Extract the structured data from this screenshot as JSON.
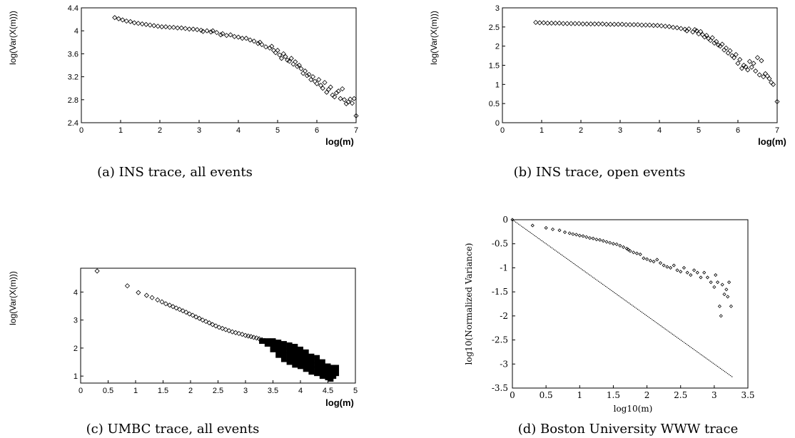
{
  "chart_data": [
    {
      "type": "scatter",
      "caption": "(a) INS trace, all events",
      "xlabel": "log(m)",
      "ylabel": "log(Var(X(m)))",
      "xlim": [
        0,
        7
      ],
      "ylim": [
        2.4,
        4.4
      ],
      "xticks": [
        "0",
        "1",
        "2",
        "3",
        "4",
        "5",
        "6",
        "7"
      ],
      "yticks": [
        "2.4",
        "2.8",
        "3.2",
        "3.6",
        "4",
        "4.4"
      ],
      "marker": "diamond",
      "points": [
        [
          0.85,
          4.23
        ],
        [
          0.95,
          4.21
        ],
        [
          1.05,
          4.19
        ],
        [
          1.15,
          4.17
        ],
        [
          1.25,
          4.16
        ],
        [
          1.35,
          4.14
        ],
        [
          1.45,
          4.13
        ],
        [
          1.55,
          4.12
        ],
        [
          1.65,
          4.11
        ],
        [
          1.75,
          4.1
        ],
        [
          1.85,
          4.09
        ],
        [
          1.95,
          4.08
        ],
        [
          2.05,
          4.07
        ],
        [
          2.15,
          4.07
        ],
        [
          2.25,
          4.06
        ],
        [
          2.35,
          4.06
        ],
        [
          2.45,
          4.05
        ],
        [
          2.55,
          4.05
        ],
        [
          2.65,
          4.04
        ],
        [
          2.75,
          4.03
        ],
        [
          2.85,
          4.03
        ],
        [
          2.95,
          4.02
        ],
        [
          3.05,
          4.01
        ],
        [
          3.1,
          3.99
        ],
        [
          3.2,
          4.0
        ],
        [
          3.3,
          3.98
        ],
        [
          3.35,
          4.0
        ],
        [
          3.45,
          3.97
        ],
        [
          3.55,
          3.93
        ],
        [
          3.6,
          3.95
        ],
        [
          3.7,
          3.92
        ],
        [
          3.8,
          3.93
        ],
        [
          3.9,
          3.9
        ],
        [
          4.0,
          3.89
        ],
        [
          4.1,
          3.87
        ],
        [
          4.2,
          3.87
        ],
        [
          4.3,
          3.84
        ],
        [
          4.4,
          3.82
        ],
        [
          4.5,
          3.78
        ],
        [
          4.55,
          3.8
        ],
        [
          4.6,
          3.76
        ],
        [
          4.7,
          3.72
        ],
        [
          4.8,
          3.7
        ],
        [
          4.85,
          3.73
        ],
        [
          4.9,
          3.66
        ],
        [
          4.95,
          3.62
        ],
        [
          5.0,
          3.66
        ],
        [
          5.05,
          3.58
        ],
        [
          5.1,
          3.52
        ],
        [
          5.15,
          3.6
        ],
        [
          5.2,
          3.55
        ],
        [
          5.25,
          3.49
        ],
        [
          5.3,
          3.47
        ],
        [
          5.35,
          3.52
        ],
        [
          5.4,
          3.42
        ],
        [
          5.45,
          3.46
        ],
        [
          5.5,
          3.38
        ],
        [
          5.55,
          3.4
        ],
        [
          5.6,
          3.34
        ],
        [
          5.65,
          3.26
        ],
        [
          5.7,
          3.3
        ],
        [
          5.75,
          3.22
        ],
        [
          5.8,
          3.24
        ],
        [
          5.85,
          3.15
        ],
        [
          5.9,
          3.2
        ],
        [
          5.95,
          3.12
        ],
        [
          6.0,
          3.08
        ],
        [
          6.05,
          3.15
        ],
        [
          6.1,
          3.05
        ],
        [
          6.15,
          3.0
        ],
        [
          6.2,
          3.1
        ],
        [
          6.25,
          2.93
        ],
        [
          6.3,
          2.98
        ],
        [
          6.35,
          3.02
        ],
        [
          6.4,
          2.88
        ],
        [
          6.45,
          2.85
        ],
        [
          6.5,
          2.92
        ],
        [
          6.55,
          2.95
        ],
        [
          6.6,
          2.82
        ],
        [
          6.65,
          2.99
        ],
        [
          6.7,
          2.8
        ],
        [
          6.75,
          2.73
        ],
        [
          6.8,
          2.76
        ],
        [
          6.85,
          2.81
        ],
        [
          6.9,
          2.74
        ],
        [
          6.95,
          2.82
        ],
        [
          7.0,
          2.52
        ]
      ]
    },
    {
      "type": "scatter",
      "caption": "(b) INS trace, open events",
      "xlabel": "log(m)",
      "ylabel": "log(Var(X(m)))",
      "xlim": [
        0,
        7
      ],
      "ylim": [
        0,
        3
      ],
      "xticks": [
        "0",
        "1",
        "2",
        "3",
        "4",
        "5",
        "6",
        "7"
      ],
      "yticks": [
        "0",
        "0.5",
        "1",
        "1.5",
        "2",
        "2.5",
        "3"
      ],
      "marker": "diamond",
      "points": [
        [
          0.85,
          2.62
        ],
        [
          0.95,
          2.61
        ],
        [
          1.05,
          2.61
        ],
        [
          1.15,
          2.6
        ],
        [
          1.25,
          2.6
        ],
        [
          1.35,
          2.6
        ],
        [
          1.45,
          2.6
        ],
        [
          1.55,
          2.59
        ],
        [
          1.65,
          2.59
        ],
        [
          1.75,
          2.59
        ],
        [
          1.85,
          2.59
        ],
        [
          1.95,
          2.59
        ],
        [
          2.05,
          2.58
        ],
        [
          2.15,
          2.58
        ],
        [
          2.25,
          2.58
        ],
        [
          2.35,
          2.58
        ],
        [
          2.45,
          2.58
        ],
        [
          2.55,
          2.58
        ],
        [
          2.65,
          2.57
        ],
        [
          2.75,
          2.57
        ],
        [
          2.85,
          2.57
        ],
        [
          2.95,
          2.57
        ],
        [
          3.05,
          2.57
        ],
        [
          3.15,
          2.56
        ],
        [
          3.25,
          2.56
        ],
        [
          3.35,
          2.56
        ],
        [
          3.45,
          2.56
        ],
        [
          3.55,
          2.55
        ],
        [
          3.65,
          2.55
        ],
        [
          3.75,
          2.55
        ],
        [
          3.85,
          2.54
        ],
        [
          3.95,
          2.54
        ],
        [
          4.05,
          2.53
        ],
        [
          4.15,
          2.52
        ],
        [
          4.25,
          2.51
        ],
        [
          4.35,
          2.49
        ],
        [
          4.45,
          2.48
        ],
        [
          4.55,
          2.46
        ],
        [
          4.65,
          2.44
        ],
        [
          4.7,
          2.4
        ],
        [
          4.75,
          2.45
        ],
        [
          4.85,
          2.37
        ],
        [
          4.9,
          2.43
        ],
        [
          4.95,
          2.4
        ],
        [
          5.0,
          2.32
        ],
        [
          5.05,
          2.38
        ],
        [
          5.1,
          2.3
        ],
        [
          5.15,
          2.24
        ],
        [
          5.2,
          2.28
        ],
        [
          5.25,
          2.2
        ],
        [
          5.3,
          2.15
        ],
        [
          5.35,
          2.22
        ],
        [
          5.4,
          2.08
        ],
        [
          5.45,
          2.12
        ],
        [
          5.5,
          2.03
        ],
        [
          5.55,
          2.0
        ],
        [
          5.6,
          2.05
        ],
        [
          5.65,
          1.9
        ],
        [
          5.7,
          1.95
        ],
        [
          5.75,
          1.82
        ],
        [
          5.8,
          1.88
        ],
        [
          5.85,
          1.75
        ],
        [
          5.9,
          1.7
        ],
        [
          5.95,
          1.78
        ],
        [
          6.0,
          1.55
        ],
        [
          6.05,
          1.65
        ],
        [
          6.1,
          1.42
        ],
        [
          6.15,
          1.5
        ],
        [
          6.2,
          1.46
        ],
        [
          6.25,
          1.38
        ],
        [
          6.3,
          1.6
        ],
        [
          6.35,
          1.45
        ],
        [
          6.4,
          1.55
        ],
        [
          6.45,
          1.35
        ],
        [
          6.5,
          1.7
        ],
        [
          6.55,
          1.25
        ],
        [
          6.6,
          1.62
        ],
        [
          6.65,
          1.2
        ],
        [
          6.7,
          1.28
        ],
        [
          6.75,
          1.22
        ],
        [
          6.8,
          1.15
        ],
        [
          6.85,
          1.05
        ],
        [
          6.9,
          1.0
        ],
        [
          7.0,
          0.55
        ]
      ]
    },
    {
      "type": "scatter",
      "caption": "(c) UMBC trace, all events",
      "xlabel": "log(m)",
      "ylabel": "log(Var(X(m)))",
      "xlim": [
        0,
        5
      ],
      "ylim": [
        0.75,
        4.85
      ],
      "xticks": [
        "0",
        "0.5",
        "1",
        "1.5",
        "2",
        "2.5",
        "3",
        "3.5",
        "4",
        "4.5",
        "5"
      ],
      "ytickvals": [
        1,
        2,
        3,
        4
      ],
      "yticks": [
        "1",
        "2",
        "3",
        "4"
      ],
      "marker": "diamond",
      "points": [
        [
          0.3,
          4.75
        ],
        [
          0.85,
          4.22
        ],
        [
          1.05,
          3.98
        ],
        [
          1.2,
          3.88
        ],
        [
          1.3,
          3.8
        ],
        [
          1.4,
          3.72
        ],
        [
          1.48,
          3.65
        ],
        [
          1.55,
          3.58
        ],
        [
          1.62,
          3.53
        ],
        [
          1.68,
          3.48
        ],
        [
          1.74,
          3.43
        ],
        [
          1.8,
          3.38
        ],
        [
          1.86,
          3.33
        ],
        [
          1.92,
          3.28
        ],
        [
          1.98,
          3.22
        ],
        [
          2.04,
          3.17
        ],
        [
          2.1,
          3.11
        ],
        [
          2.16,
          3.06
        ],
        [
          2.22,
          3.0
        ],
        [
          2.28,
          2.95
        ],
        [
          2.34,
          2.9
        ],
        [
          2.4,
          2.84
        ],
        [
          2.46,
          2.79
        ],
        [
          2.52,
          2.74
        ],
        [
          2.58,
          2.7
        ],
        [
          2.64,
          2.66
        ],
        [
          2.7,
          2.62
        ],
        [
          2.76,
          2.58
        ],
        [
          2.82,
          2.55
        ],
        [
          2.88,
          2.52
        ],
        [
          2.94,
          2.49
        ],
        [
          3.0,
          2.45
        ],
        [
          3.05,
          2.43
        ],
        [
          3.1,
          2.41
        ],
        [
          3.15,
          2.38
        ],
        [
          3.2,
          2.36
        ],
        [
          3.25,
          2.33
        ],
        [
          3.3,
          2.3
        ],
        [
          3.35,
          2.27
        ],
        [
          3.4,
          2.24
        ],
        [
          3.45,
          2.2
        ],
        [
          3.5,
          2.15
        ],
        [
          3.55,
          2.1
        ],
        [
          3.6,
          2.05
        ],
        [
          3.65,
          2.0
        ],
        [
          3.7,
          1.95
        ],
        [
          3.75,
          1.9
        ],
        [
          3.8,
          1.85
        ],
        [
          3.85,
          1.8
        ],
        [
          3.9,
          1.75
        ],
        [
          3.95,
          1.7
        ],
        [
          4.0,
          1.65
        ],
        [
          4.05,
          1.6
        ],
        [
          4.1,
          1.55
        ],
        [
          4.15,
          1.5
        ],
        [
          4.2,
          1.45
        ],
        [
          4.25,
          1.4
        ],
        [
          4.3,
          1.35
        ],
        [
          4.35,
          1.3
        ],
        [
          4.4,
          1.25
        ],
        [
          4.45,
          1.2
        ],
        [
          4.5,
          1.15
        ],
        [
          4.55,
          1.1
        ],
        [
          4.6,
          1.2
        ],
        [
          4.65,
          1.3
        ]
      ],
      "bands": [
        [
          3.3,
          2.35,
          2.15
        ],
        [
          3.4,
          2.35,
          2.05
        ],
        [
          3.5,
          2.35,
          1.85
        ],
        [
          3.6,
          2.3,
          1.65
        ],
        [
          3.7,
          2.25,
          1.5
        ],
        [
          3.8,
          2.2,
          1.4
        ],
        [
          3.9,
          2.15,
          1.3
        ],
        [
          4.0,
          2.05,
          1.25
        ],
        [
          4.1,
          1.95,
          1.15
        ],
        [
          4.2,
          1.8,
          1.05
        ],
        [
          4.3,
          1.75,
          1.0
        ],
        [
          4.4,
          1.6,
          0.9
        ],
        [
          4.5,
          1.45,
          0.85
        ],
        [
          4.55,
          1.35,
          0.8
        ],
        [
          4.6,
          1.4,
          0.9
        ],
        [
          4.65,
          1.4,
          1.0
        ]
      ]
    },
    {
      "type": "scatter",
      "caption": "(d) Boston University WWW trace",
      "xlabel": "log10(m)",
      "ylabel": "log10(Normalized Variance)",
      "xlim": [
        0,
        3.5
      ],
      "ylim": [
        -3.5,
        0
      ],
      "xticks": [
        "0",
        "0.5",
        "1",
        "1.5",
        "2",
        "2.5",
        "3",
        "3.5"
      ],
      "yticks": [
        "0",
        "-0.5",
        "-1",
        "-1.5",
        "-2",
        "-2.5",
        "-3",
        "-3.5"
      ],
      "marker": "diamond",
      "reference_line": [
        [
          0,
          0
        ],
        [
          3.27,
          -3.27
        ]
      ],
      "points": [
        [
          0.0,
          0.0
        ],
        [
          0.3,
          -0.12
        ],
        [
          0.5,
          -0.17
        ],
        [
          0.6,
          -0.2
        ],
        [
          0.7,
          -0.22
        ],
        [
          0.78,
          -0.26
        ],
        [
          0.85,
          -0.28
        ],
        [
          0.9,
          -0.3
        ],
        [
          0.95,
          -0.31
        ],
        [
          1.0,
          -0.33
        ],
        [
          1.05,
          -0.34
        ],
        [
          1.1,
          -0.36
        ],
        [
          1.15,
          -0.38
        ],
        [
          1.2,
          -0.39
        ],
        [
          1.25,
          -0.41
        ],
        [
          1.3,
          -0.42
        ],
        [
          1.35,
          -0.44
        ],
        [
          1.4,
          -0.46
        ],
        [
          1.45,
          -0.48
        ],
        [
          1.5,
          -0.5
        ],
        [
          1.55,
          -0.51
        ],
        [
          1.6,
          -0.54
        ],
        [
          1.65,
          -0.57
        ],
        [
          1.7,
          -0.6
        ],
        [
          1.72,
          -0.62
        ],
        [
          1.75,
          -0.65
        ],
        [
          1.8,
          -0.68
        ],
        [
          1.85,
          -0.7
        ],
        [
          1.9,
          -0.72
        ],
        [
          1.95,
          -0.8
        ],
        [
          2.0,
          -0.82
        ],
        [
          2.05,
          -0.85
        ],
        [
          2.1,
          -0.87
        ],
        [
          2.15,
          -0.83
        ],
        [
          2.2,
          -0.9
        ],
        [
          2.25,
          -0.95
        ],
        [
          2.3,
          -0.98
        ],
        [
          2.35,
          -1.0
        ],
        [
          2.4,
          -0.95
        ],
        [
          2.45,
          -1.05
        ],
        [
          2.5,
          -1.08
        ],
        [
          2.55,
          -1.0
        ],
        [
          2.6,
          -1.1
        ],
        [
          2.65,
          -1.15
        ],
        [
          2.7,
          -1.05
        ],
        [
          2.75,
          -1.1
        ],
        [
          2.8,
          -1.2
        ],
        [
          2.85,
          -1.1
        ],
        [
          2.9,
          -1.2
        ],
        [
          2.95,
          -1.3
        ],
        [
          3.0,
          -1.4
        ],
        [
          3.02,
          -1.15
        ],
        [
          3.05,
          -1.3
        ],
        [
          3.08,
          -1.8
        ],
        [
          3.1,
          -2.0
        ],
        [
          3.12,
          -1.35
        ],
        [
          3.15,
          -1.55
        ],
        [
          3.18,
          -1.45
        ],
        [
          3.2,
          -1.6
        ],
        [
          3.22,
          -1.3
        ],
        [
          3.25,
          -1.8
        ]
      ]
    }
  ]
}
